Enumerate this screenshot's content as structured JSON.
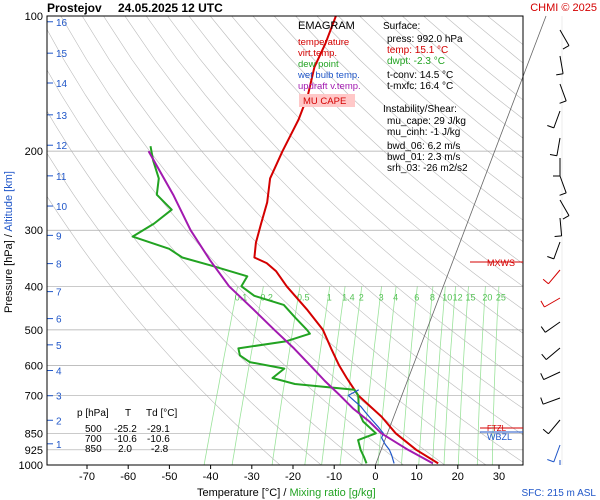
{
  "header": {
    "station": "Prostejov",
    "datetime": "24.05.2025 12 UTC",
    "credit": "CHMI © 2025"
  },
  "legend": {
    "title": "EMAGRAM",
    "items": [
      {
        "label": "temperature",
        "color": "#d40000"
      },
      {
        "label": "virt.temp.",
        "color": "#d40000"
      },
      {
        "label": "dew point",
        "color": "#22a322"
      },
      {
        "label": "wet bulb temp.",
        "color": "#1f56c8"
      },
      {
        "label": "updraft v.temp.",
        "color": "#a21ab0"
      }
    ],
    "mu_cape_label": "MU CAPE"
  },
  "info": {
    "surface_title": "Surface:",
    "press": "press: 992.0 hPa",
    "temp": "temp: 15.1 °C",
    "dwpt": "dwpt: -2.3 °C",
    "tconv": "t-conv: 14.5 °C",
    "tmxfc": "t-mxfc: 16.4 °C",
    "instab_title": "Instability/Shear:",
    "mu_cape": "mu_cape: 29 J/kg",
    "mu_cinh": "mu_cinh: -1 J/kg",
    "bwd_06": "bwd_06: 6.2 m/s",
    "bwd_01": "bwd_01: 2.3 m/s",
    "srh_03": "srh_03: -26 m2/s2"
  },
  "table": {
    "headers": [
      "p [hPa]",
      "T",
      "Td [°C]"
    ],
    "rows": [
      [
        "500",
        "-25.2",
        "-29.1"
      ],
      [
        "700",
        "-10.6",
        "-10.6"
      ],
      [
        "850",
        "2.0",
        "-2.8"
      ]
    ]
  },
  "markers": {
    "mxws": "MXWS",
    "wbzl": "WBZL",
    "ftzl": "FTZL"
  },
  "footer": {
    "temp_label": "Temperature [°C]",
    "separator": "/",
    "mixing_label": "Mixing ratio [g/kg]",
    "sfc": "SFC: 215 m ASL"
  },
  "yaxis_label": {
    "pressure": "Pressure [hPa]",
    "separator": "/",
    "altitude": "Altitude [km]"
  },
  "colors": {
    "temperature": "#d40000",
    "dewpoint": "#22a322",
    "wetbulb": "#1f56c8",
    "parcel": "#a21ab0",
    "mixing": "#9be39b",
    "mixing_text": "#55c255",
    "dry_adiabat": "#bbbbbb",
    "grid": "#aaaaaa",
    "altitude_text": "#1f56c8",
    "mu_cape_bg": "#ffc8c8"
  },
  "chart_data": {
    "type": "line",
    "title": "EMAGRAM",
    "xlabel": "Temperature [°C] / Mixing ratio [g/kg]",
    "ylabel": "Pressure [hPa] / Altitude [km]",
    "xlim": [
      -80,
      35
    ],
    "ylim": [
      1000,
      100
    ],
    "y_scale": "log",
    "grid": true,
    "x_ticks": [
      -70,
      -60,
      -50,
      -40,
      -30,
      -20,
      -10,
      0,
      10,
      20,
      30
    ],
    "y_ticks": [
      100,
      200,
      300,
      400,
      500,
      600,
      700,
      850,
      925,
      1000
    ],
    "altitude_ticks_km": [
      1,
      2,
      3,
      4,
      5,
      6,
      7,
      8,
      9,
      10,
      11,
      12,
      13,
      14,
      15,
      16
    ],
    "altitude_ticks_p": [
      897,
      795,
      701,
      616,
      540,
      472,
      411,
      356,
      308,
      265,
      227,
      194,
      166,
      141,
      121,
      103
    ],
    "mixing_ratio_labels": [
      "0.1",
      "0.2",
      "0.5",
      "1",
      "1.4",
      "2",
      "3",
      "4",
      "6",
      "8",
      "10",
      "12",
      "15",
      "20",
      "25"
    ],
    "mixing_ratio_values": [
      0.1,
      0.2,
      0.5,
      1,
      1.4,
      2,
      3,
      4,
      6,
      8,
      10,
      12,
      15,
      20,
      25
    ],
    "legend_position": "top-right",
    "series": [
      {
        "name": "temperature",
        "p": [
          992,
          925,
          850,
          780,
          700,
          640,
          600,
          550,
          500,
          450,
          400,
          370,
          355,
          345,
          320,
          290,
          260,
          230,
          200,
          170,
          150,
          130,
          115,
          100
        ],
        "t": [
          15.1,
          8.5,
          2.0,
          -3.0,
          -10.6,
          -15.0,
          -18.0,
          -21.5,
          -25.2,
          -31.0,
          -38.0,
          -42.0,
          -45.0,
          -48.5,
          -49.5,
          -50.0,
          -50.5,
          -52.0,
          -51.5,
          -50.5,
          -50.5,
          -51.5,
          -51.0,
          -51.0
        ]
      },
      {
        "name": "dew point",
        "p": [
          992,
          960,
          925,
          880,
          850,
          800,
          760,
          720,
          700,
          680,
          660,
          640,
          610,
          590,
          570,
          550,
          530,
          510,
          500,
          470,
          440,
          420,
          400,
          380,
          360,
          345,
          330,
          310,
          290,
          270,
          250,
          230,
          210,
          195
        ],
        "t": [
          -2.3,
          -3.5,
          -5.0,
          -6.5,
          -2.8,
          -7.0,
          -9.0,
          -10.0,
          -10.6,
          -12.0,
          -27.0,
          -33.0,
          -31.0,
          -40.0,
          -43.0,
          -44.0,
          -33.0,
          -28.0,
          -29.1,
          -33.0,
          -37.0,
          -45.0,
          -49.0,
          -48.5,
          -58.0,
          -66.0,
          -70.0,
          -80.0,
          -76.0,
          -73.0,
          -78.0,
          -79.0,
          -82.0,
          -84.0
        ]
      },
      {
        "name": "wet bulb temp.",
        "p": [
          992,
          950,
          925,
          900,
          870,
          850,
          820,
          800,
          780,
          760,
          740,
          720,
          700,
          690,
          680
        ],
        "t": [
          4.4,
          3.0,
          2.0,
          0.5,
          -1.0,
          -1.0,
          -3.0,
          -4.5,
          -6.0,
          -7.5,
          -9.0,
          -11.0,
          -13.0,
          -12.0,
          -11.0
        ]
      },
      {
        "name": "updraft v.temp.",
        "p": [
          992,
          925,
          850,
          800,
          750,
          700,
          650,
          600,
          550,
          500,
          450,
          400,
          350,
          300,
          250,
          200
        ],
        "t": [
          13.8,
          6.5,
          -1.5,
          -5.5,
          -10.5,
          -15.0,
          -20.0,
          -25.0,
          -30.5,
          -37.0,
          -44.0,
          -52.0,
          -59.0,
          -66.5,
          -74.0,
          -84.0
        ]
      }
    ]
  }
}
